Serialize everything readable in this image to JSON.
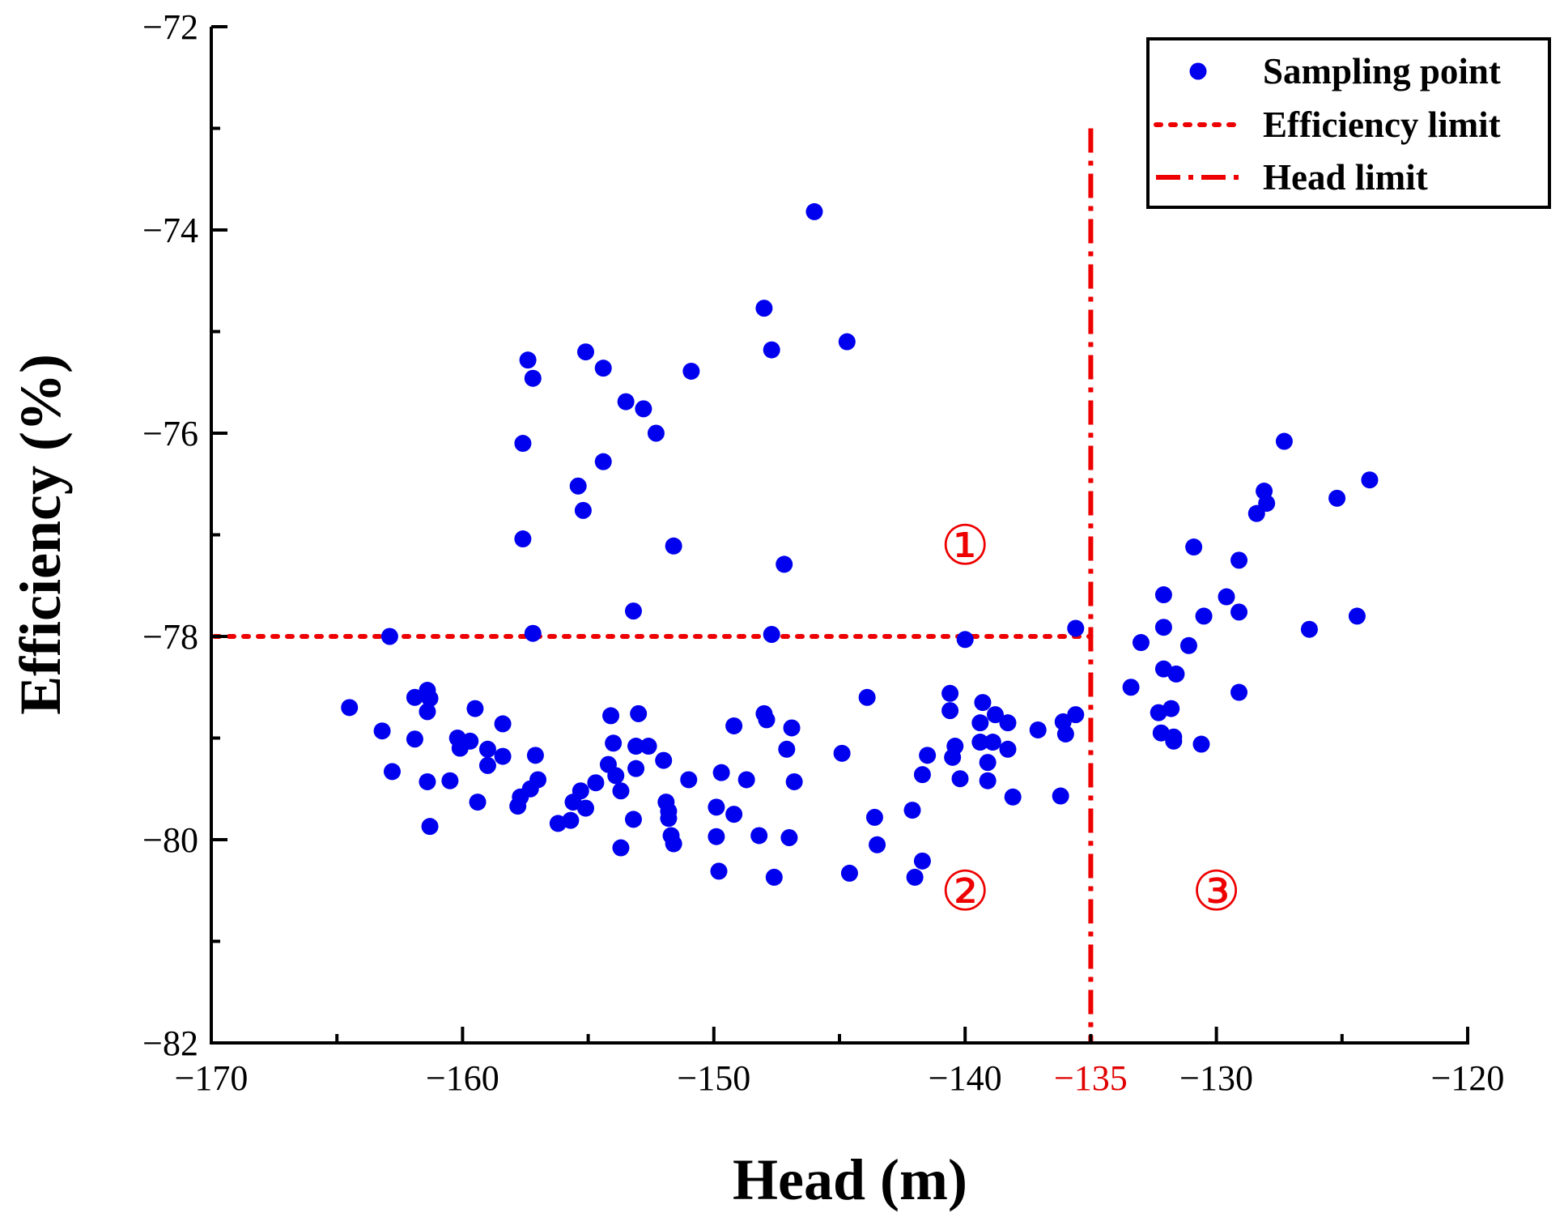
{
  "chart_data": {
    "type": "scatter",
    "xlabel": "Head (m)",
    "ylabel": "Efficiency (%)",
    "xlim": [
      -170,
      -120
    ],
    "ylim": [
      -82,
      -72
    ],
    "x_ticks": [
      -170,
      -160,
      -150,
      -140,
      -130,
      -120
    ],
    "x_tick_labels": [
      "−170",
      "−160",
      "−150",
      "−140",
      "−130",
      "−120"
    ],
    "y_ticks": [
      -82,
      -80,
      -78,
      -76,
      -74,
      -72
    ],
    "y_tick_labels": [
      "−82",
      "−80",
      "−78",
      "−76",
      "−74",
      "−72"
    ],
    "highlight_tick": {
      "value": -135,
      "label": "−135",
      "color": "#e00000"
    },
    "legend": {
      "position": "top-right",
      "entries": [
        {
          "label": "Sampling point",
          "style": "marker"
        },
        {
          "label": "Efficiency limit",
          "style": "dotted"
        },
        {
          "label": "Head limit",
          "style": "dashdot"
        }
      ]
    },
    "efficiency_limit": {
      "y": -78,
      "x_start": -170,
      "x_end": -135,
      "color": "#ee0000"
    },
    "head_limit": {
      "x": -135,
      "y_start": -82,
      "y_end": -73,
      "color": "#ee0000"
    },
    "regions": [
      {
        "label": "①",
        "x": -140,
        "y": -77.1
      },
      {
        "label": "②",
        "x": -140,
        "y": -80.5
      },
      {
        "label": "③",
        "x": -130,
        "y": -80.5
      }
    ],
    "colors": {
      "points": "#0000ee",
      "limits": "#ee0000"
    },
    "series": [
      {
        "name": "Sampling point",
        "points": [
          [
            -164.5,
            -78.7
          ],
          [
            -163.2,
            -78.93
          ],
          [
            -162.8,
            -79.33
          ],
          [
            -162.9,
            -78.0
          ],
          [
            -161.9,
            -78.6
          ],
          [
            -161.9,
            -79.01
          ],
          [
            -161.4,
            -78.53
          ],
          [
            -161.3,
            -78.61
          ],
          [
            -161.4,
            -78.74
          ],
          [
            -161.4,
            -79.43
          ],
          [
            -161.3,
            -79.87
          ],
          [
            -160.5,
            -79.42
          ],
          [
            -160.1,
            -79.1
          ],
          [
            -160.2,
            -79.0
          ],
          [
            -159.7,
            -79.03
          ],
          [
            -159.5,
            -78.71
          ],
          [
            -159.4,
            -79.63
          ],
          [
            -159.0,
            -79.27
          ],
          [
            -159.0,
            -79.11
          ],
          [
            -158.4,
            -79.18
          ],
          [
            -158.4,
            -78.86
          ],
          [
            -157.8,
            -79.67
          ],
          [
            -157.7,
            -79.58
          ],
          [
            -157.3,
            -79.5
          ],
          [
            -157.0,
            -79.41
          ],
          [
            -157.1,
            -79.17
          ],
          [
            -157.6,
            -76.1
          ],
          [
            -157.6,
            -77.04
          ],
          [
            -157.4,
            -75.28
          ],
          [
            -157.2,
            -75.46
          ],
          [
            -157.2,
            -77.97
          ],
          [
            -156.2,
            -79.84
          ],
          [
            -155.7,
            -79.81
          ],
          [
            -155.6,
            -79.63
          ],
          [
            -155.3,
            -79.52
          ],
          [
            -155.1,
            -79.69
          ],
          [
            -154.7,
            -79.44
          ],
          [
            -154.2,
            -79.26
          ],
          [
            -153.9,
            -79.37
          ],
          [
            -154.0,
            -79.05
          ],
          [
            -154.1,
            -78.78
          ],
          [
            -153.7,
            -79.52
          ],
          [
            -153.7,
            -80.08
          ],
          [
            -153.2,
            -79.8
          ],
          [
            -153.1,
            -79.3
          ],
          [
            -153.1,
            -79.08
          ],
          [
            -153.0,
            -78.76
          ],
          [
            -152.6,
            -79.08
          ],
          [
            -152.0,
            -79.22
          ],
          [
            -151.9,
            -79.63
          ],
          [
            -151.8,
            -79.72
          ],
          [
            -151.8,
            -79.79
          ],
          [
            -151.7,
            -79.96
          ],
          [
            -151.6,
            -80.04
          ],
          [
            -151.0,
            -79.41
          ],
          [
            -149.9,
            -79.68
          ],
          [
            -149.9,
            -79.97
          ],
          [
            -149.8,
            -80.31
          ],
          [
            -149.7,
            -79.34
          ],
          [
            -149.2,
            -79.75
          ],
          [
            -149.2,
            -78.88
          ],
          [
            -148.7,
            -79.41
          ],
          [
            -148.2,
            -79.96
          ],
          [
            -148.0,
            -78.76
          ],
          [
            -147.9,
            -78.82
          ],
          [
            -147.6,
            -80.37
          ],
          [
            -147.1,
            -79.11
          ],
          [
            -147.0,
            -79.98
          ],
          [
            -146.9,
            -78.9
          ],
          [
            -146.8,
            -79.43
          ],
          [
            -155.4,
            -76.52
          ],
          [
            -155.2,
            -76.76
          ],
          [
            -155.1,
            -75.2
          ],
          [
            -154.4,
            -75.36
          ],
          [
            -154.4,
            -76.28
          ],
          [
            -153.5,
            -75.69
          ],
          [
            -153.2,
            -77.75
          ],
          [
            -152.8,
            -75.76
          ],
          [
            -152.3,
            -76.0
          ],
          [
            -151.6,
            -77.11
          ],
          [
            -150.9,
            -75.39
          ],
          [
            -148.0,
            -74.77
          ],
          [
            -147.7,
            -75.18
          ],
          [
            -147.7,
            -77.98
          ],
          [
            -147.2,
            -77.29
          ],
          [
            -146.0,
            -73.82
          ],
          [
            -144.7,
            -75.1
          ],
          [
            -144.9,
            -79.15
          ],
          [
            -144.6,
            -80.33
          ],
          [
            -143.9,
            -78.6
          ],
          [
            -143.6,
            -79.78
          ],
          [
            -143.5,
            -80.05
          ],
          [
            -142.1,
            -79.71
          ],
          [
            -142.0,
            -80.37
          ],
          [
            -141.7,
            -80.21
          ],
          [
            -141.7,
            -79.36
          ],
          [
            -141.5,
            -79.17
          ],
          [
            -140.6,
            -78.56
          ],
          [
            -140.6,
            -78.73
          ],
          [
            -140.5,
            -79.19
          ],
          [
            -140.4,
            -79.08
          ],
          [
            -140.2,
            -79.4
          ],
          [
            -140.0,
            -78.03
          ],
          [
            -139.4,
            -79.04
          ],
          [
            -139.4,
            -78.85
          ],
          [
            -139.3,
            -78.65
          ],
          [
            -139.1,
            -79.24
          ],
          [
            -139.1,
            -79.42
          ],
          [
            -138.9,
            -79.04
          ],
          [
            -138.8,
            -78.77
          ],
          [
            -138.3,
            -78.85
          ],
          [
            -138.3,
            -79.11
          ],
          [
            -138.1,
            -79.58
          ],
          [
            -137.1,
            -78.92
          ],
          [
            -136.2,
            -79.57
          ],
          [
            -136.1,
            -78.84
          ],
          [
            -136.0,
            -78.96
          ],
          [
            -135.6,
            -78.77
          ],
          [
            -135.6,
            -77.92
          ],
          [
            -133.4,
            -78.5
          ],
          [
            -133.0,
            -78.06
          ],
          [
            -132.3,
            -78.75
          ],
          [
            -132.2,
            -78.95
          ],
          [
            -132.1,
            -78.32
          ],
          [
            -132.1,
            -77.91
          ],
          [
            -132.1,
            -77.59
          ],
          [
            -131.8,
            -78.71
          ],
          [
            -131.7,
            -79.03
          ],
          [
            -131.7,
            -78.99
          ],
          [
            -131.6,
            -78.37
          ],
          [
            -131.1,
            -78.09
          ],
          [
            -130.9,
            -77.12
          ],
          [
            -130.6,
            -79.06
          ],
          [
            -130.5,
            -77.8
          ],
          [
            -129.6,
            -77.61
          ],
          [
            -129.1,
            -77.76
          ],
          [
            -129.1,
            -77.25
          ],
          [
            -129.1,
            -78.55
          ],
          [
            -128.4,
            -76.79
          ],
          [
            -128.1,
            -76.57
          ],
          [
            -128.0,
            -76.69
          ],
          [
            -127.3,
            -76.08
          ],
          [
            -126.3,
            -77.93
          ],
          [
            -125.2,
            -76.64
          ],
          [
            -124.4,
            -77.8
          ],
          [
            -123.9,
            -76.46
          ]
        ]
      }
    ]
  }
}
